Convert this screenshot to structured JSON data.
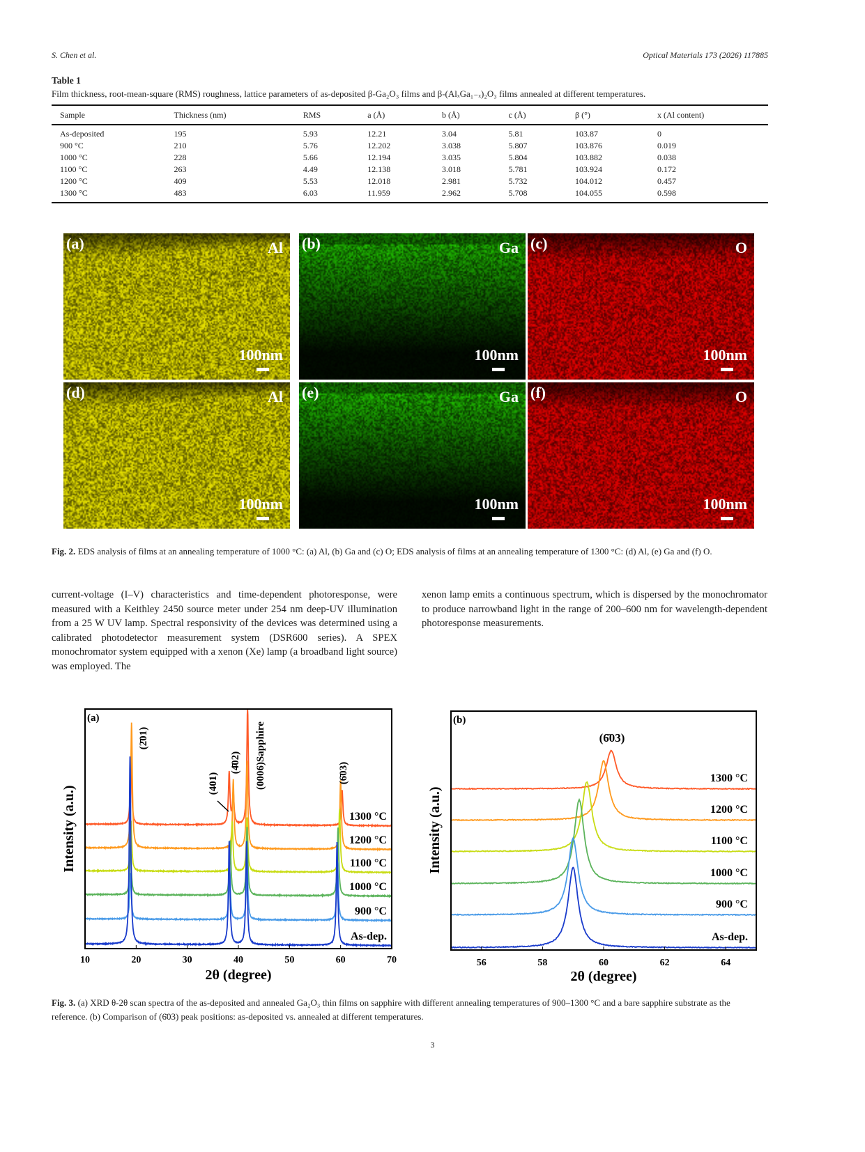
{
  "header": {
    "authors": "S. Chen et al.",
    "journal": "Optical Materials 173 (2026) 117885"
  },
  "table": {
    "title": "Table 1",
    "caption": "Film thickness, root-mean-square (RMS) roughness, lattice parameters of as-deposited β-Ga₂O₃ films and β-(AlₓGa₁₋ₓ)₂O₃ films annealed at different temperatures.",
    "headers": [
      "Sample",
      "Thickness (nm)",
      "RMS",
      "a (Å)",
      "b (Å)",
      "c (Å)",
      "β (°)",
      "x (Al content)"
    ],
    "rows": [
      [
        "As-deposited",
        "195",
        "5.93",
        "12.21",
        "3.04",
        "5.81",
        "103.87",
        "0"
      ],
      [
        "900 °C",
        "210",
        "5.76",
        "12.202",
        "3.038",
        "5.807",
        "103.876",
        "0.019"
      ],
      [
        "1000 °C",
        "228",
        "5.66",
        "12.194",
        "3.035",
        "5.804",
        "103.882",
        "0.038"
      ],
      [
        "1100 °C",
        "263",
        "4.49",
        "12.138",
        "3.018",
        "5.781",
        "103.924",
        "0.172"
      ],
      [
        "1200 °C",
        "409",
        "5.53",
        "12.018",
        "2.981",
        "5.732",
        "104.012",
        "0.457"
      ],
      [
        "1300 °C",
        "483",
        "6.03",
        "11.959",
        "2.962",
        "5.708",
        "104.055",
        "0.598"
      ]
    ]
  },
  "fig2": {
    "panels": [
      {
        "label": "(a)",
        "element": "Al",
        "scale": "100nm",
        "color": "#e6e000"
      },
      {
        "label": "(b)",
        "element": "Ga",
        "scale": "100nm",
        "color": "#22d000"
      },
      {
        "label": "(c)",
        "element": "O",
        "scale": "100nm",
        "color": "#e00000"
      },
      {
        "label": "(d)",
        "element": "Al",
        "scale": "100nm",
        "color": "#e6e000"
      },
      {
        "label": "(e)",
        "element": "Ga",
        "scale": "100nm",
        "color": "#22d000"
      },
      {
        "label": "(f)",
        "element": "O",
        "scale": "100nm",
        "color": "#e00000"
      }
    ],
    "caption_label": "Fig. 2.",
    "caption": "EDS analysis of films at an annealing temperature of 1000 °C: (a) Al, (b) Ga and (c) O; EDS analysis of films at an annealing temperature of 1300 °C: (d) Al, (e) Ga and (f) O."
  },
  "body": {
    "left": "current-voltage (I–V) characteristics and time-dependent photoresponse, were measured with a Keithley 2450 source meter under 254 nm deep-UV illumination from a 25 W UV lamp. Spectral responsivity of the devices was determined using a calibrated photodetector measurement system (DSR600 series). A SPEX monochromator system equipped with a xenon (Xe) lamp (a broadband light source) was employed. The",
    "right": "xenon lamp emits a continuous spectrum, which is dispersed by the monochromator to produce narrowband light in the range of 200–600 nm for wavelength-dependent photoresponse measurements."
  },
  "chart_data": [
    {
      "type": "line",
      "panel": "(a)",
      "xlabel": "2θ (degree)",
      "ylabel": "Intensity (a.u.)",
      "xlim": [
        10,
        70
      ],
      "xticks": [
        10,
        20,
        30,
        40,
        50,
        60,
        70
      ],
      "annotations": [
        "(2̄01)",
        "(401)",
        "(4̄02)",
        "(0006)Sapphire",
        "(6̄03)"
      ],
      "series": [
        {
          "name": "1300 °C",
          "color": "#ff5a28",
          "peaks": [
            [
              19.0,
              0.55
            ],
            [
              38.2,
              0.44
            ],
            [
              39.0,
              0.27
            ],
            [
              41.8,
              1.0
            ],
            [
              60.3,
              0.3
            ]
          ]
        },
        {
          "name": "1200 °C",
          "color": "#ff9a1e",
          "peaks": [
            [
              19.1,
              1.0
            ],
            [
              39.0,
              0.55
            ],
            [
              41.7,
              0.7
            ],
            [
              60.0,
              0.55
            ]
          ]
        },
        {
          "name": "1100 °C",
          "color": "#c8dc14",
          "peaks": [
            [
              19.0,
              0.55
            ],
            [
              38.8,
              0.55
            ],
            [
              41.7,
              0.6
            ],
            [
              59.8,
              0.7
            ]
          ]
        },
        {
          "name": "1000 °C",
          "color": "#5cb45c",
          "peaks": [
            [
              18.9,
              0.55
            ],
            [
              38.4,
              0.6
            ],
            [
              41.7,
              0.75
            ],
            [
              59.5,
              0.75
            ]
          ]
        },
        {
          "name": "900 °C",
          "color": "#4a9be8",
          "peaks": [
            [
              18.9,
              0.55
            ],
            [
              38.3,
              0.6
            ],
            [
              41.7,
              0.7
            ],
            [
              59.4,
              0.7
            ]
          ]
        },
        {
          "name": "As-dep.",
          "color": "#1a3ccc",
          "peaks": [
            [
              18.8,
              1.0
            ],
            [
              38.2,
              0.55
            ],
            [
              41.6,
              0.55
            ],
            [
              59.3,
              0.55
            ]
          ]
        }
      ]
    },
    {
      "type": "line",
      "panel": "(b)",
      "xlabel": "2θ (degree)",
      "ylabel": "Intensity (a.u.)",
      "xlim": [
        55,
        65
      ],
      "xticks": [
        56,
        58,
        60,
        62,
        64
      ],
      "annotations": [
        "(6̄03)"
      ],
      "series": [
        {
          "name": "1300 °C",
          "color": "#ff5a28",
          "peak": 60.25,
          "height": 0.55
        },
        {
          "name": "1200 °C",
          "color": "#ff9a1e",
          "peak": 60.0,
          "height": 0.85
        },
        {
          "name": "1100 °C",
          "color": "#c8dc14",
          "peak": 59.45,
          "height": 1.0
        },
        {
          "name": "1000 °C",
          "color": "#5cb45c",
          "peak": 59.2,
          "height": 1.2
        },
        {
          "name": "900 °C",
          "color": "#4a9be8",
          "peak": 59.0,
          "height": 1.1
        },
        {
          "name": "As-dep.",
          "color": "#1a3ccc",
          "peak": 59.0,
          "height": 1.15
        }
      ]
    }
  ],
  "fig3": {
    "caption_label": "Fig. 3.",
    "caption": "(a) XRD θ-2θ scan spectra of the as-deposited and annealed Ga₂O₃ thin films on sapphire with different annealing temperatures of 900–1300 °C and a bare sapphire substrate as the reference. (b) Comparison of (6̄03) peak positions: as-deposited vs. annealed at different temperatures."
  },
  "page_number": "3"
}
